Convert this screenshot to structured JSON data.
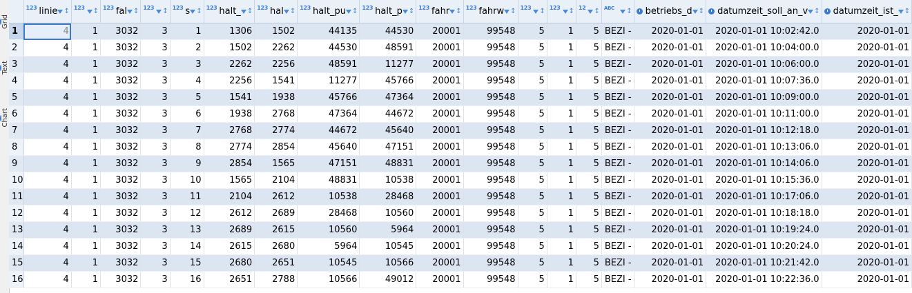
{
  "sidebar_tabs": [
    {
      "label": "Grid",
      "icon": "grid-icon"
    },
    {
      "label": "Text",
      "icon": "text-icon"
    },
    {
      "label": "Chart",
      "icon": "chart-icon"
    }
  ],
  "columns": [
    {
      "type": "123",
      "name": "linie"
    },
    {
      "type": "123",
      "name": ""
    },
    {
      "type": "123",
      "name": "fal"
    },
    {
      "type": "123",
      "name": ""
    },
    {
      "type": "123",
      "name": "s"
    },
    {
      "type": "123",
      "name": "halt_"
    },
    {
      "type": "123",
      "name": "hal"
    },
    {
      "type": "123",
      "name": "halt_pu"
    },
    {
      "type": "123",
      "name": "halt_p"
    },
    {
      "type": "123",
      "name": "fahr"
    },
    {
      "type": "123",
      "name": "fahrw"
    },
    {
      "type": "123",
      "name": ""
    },
    {
      "type": "123",
      "name": ""
    },
    {
      "type": "12",
      "name": ""
    },
    {
      "type": "ABC",
      "name": ""
    },
    {
      "type": "clock",
      "name": "betriebs_d"
    },
    {
      "type": "clock",
      "name": "datumzeit_soll_an_v"
    },
    {
      "type": "clock",
      "name": "datumzeit_ist_"
    }
  ],
  "rows": [
    [
      "1",
      "4",
      "1",
      "3032",
      "3",
      "1",
      "1306",
      "1502",
      "44135",
      "44530",
      "20001",
      "99548",
      "5",
      "1",
      "5",
      "BEZI -",
      "2020-01-01",
      "2020-01-01 10:02:42.0",
      "2020-01-01"
    ],
    [
      "2",
      "4",
      "1",
      "3032",
      "3",
      "2",
      "1502",
      "2262",
      "44530",
      "48591",
      "20001",
      "99548",
      "5",
      "1",
      "5",
      "BEZI -",
      "2020-01-01",
      "2020-01-01 10:04:00.0",
      "2020-01-01"
    ],
    [
      "3",
      "4",
      "1",
      "3032",
      "3",
      "3",
      "2262",
      "2256",
      "48591",
      "11277",
      "20001",
      "99548",
      "5",
      "1",
      "5",
      "BEZI -",
      "2020-01-01",
      "2020-01-01 10:06:00.0",
      "2020-01-01"
    ],
    [
      "4",
      "4",
      "1",
      "3032",
      "3",
      "4",
      "2256",
      "1541",
      "11277",
      "45766",
      "20001",
      "99548",
      "5",
      "1",
      "5",
      "BEZI -",
      "2020-01-01",
      "2020-01-01 10:07:36.0",
      "2020-01-01"
    ],
    [
      "5",
      "4",
      "1",
      "3032",
      "3",
      "5",
      "1541",
      "1938",
      "45766",
      "47364",
      "20001",
      "99548",
      "5",
      "1",
      "5",
      "BEZI -",
      "2020-01-01",
      "2020-01-01 10:09:00.0",
      "2020-01-01"
    ],
    [
      "6",
      "4",
      "1",
      "3032",
      "3",
      "6",
      "1938",
      "2768",
      "47364",
      "44672",
      "20001",
      "99548",
      "5",
      "1",
      "5",
      "BEZI -",
      "2020-01-01",
      "2020-01-01 10:11:00.0",
      "2020-01-01"
    ],
    [
      "7",
      "4",
      "1",
      "3032",
      "3",
      "7",
      "2768",
      "2774",
      "44672",
      "45640",
      "20001",
      "99548",
      "5",
      "1",
      "5",
      "BEZI -",
      "2020-01-01",
      "2020-01-01 10:12:18.0",
      "2020-01-01"
    ],
    [
      "8",
      "4",
      "1",
      "3032",
      "3",
      "8",
      "2774",
      "2854",
      "45640",
      "47151",
      "20001",
      "99548",
      "5",
      "1",
      "5",
      "BEZI -",
      "2020-01-01",
      "2020-01-01 10:13:06.0",
      "2020-01-01"
    ],
    [
      "9",
      "4",
      "1",
      "3032",
      "3",
      "9",
      "2854",
      "1565",
      "47151",
      "48831",
      "20001",
      "99548",
      "5",
      "1",
      "5",
      "BEZI -",
      "2020-01-01",
      "2020-01-01 10:14:06.0",
      "2020-01-01"
    ],
    [
      "10",
      "4",
      "1",
      "3032",
      "3",
      "10",
      "1565",
      "2104",
      "48831",
      "10538",
      "20001",
      "99548",
      "5",
      "1",
      "5",
      "BEZI -",
      "2020-01-01",
      "2020-01-01 10:15:36.0",
      "2020-01-01"
    ],
    [
      "11",
      "4",
      "1",
      "3032",
      "3",
      "11",
      "2104",
      "2612",
      "10538",
      "28468",
      "20001",
      "99548",
      "5",
      "1",
      "5",
      "BEZI -",
      "2020-01-01",
      "2020-01-01 10:17:06.0",
      "2020-01-01"
    ],
    [
      "12",
      "4",
      "1",
      "3032",
      "3",
      "12",
      "2612",
      "2689",
      "28468",
      "10560",
      "20001",
      "99548",
      "5",
      "1",
      "5",
      "BEZI -",
      "2020-01-01",
      "2020-01-01 10:18:18.0",
      "2020-01-01"
    ],
    [
      "13",
      "4",
      "1",
      "3032",
      "3",
      "13",
      "2689",
      "2615",
      "10560",
      "5964",
      "20001",
      "99548",
      "5",
      "1",
      "5",
      "BEZI -",
      "2020-01-01",
      "2020-01-01 10:19:24.0",
      "2020-01-01"
    ],
    [
      "14",
      "4",
      "1",
      "3032",
      "3",
      "14",
      "2615",
      "2680",
      "5964",
      "10545",
      "20001",
      "99548",
      "5",
      "1",
      "5",
      "BEZI -",
      "2020-01-01",
      "2020-01-01 10:20:24.0",
      "2020-01-01"
    ],
    [
      "15",
      "4",
      "1",
      "3032",
      "3",
      "15",
      "2680",
      "2651",
      "10545",
      "10566",
      "20001",
      "99548",
      "5",
      "1",
      "5",
      "BEZI -",
      "2020-01-01",
      "2020-01-01 10:21:42.0",
      "2020-01-01"
    ],
    [
      "16",
      "4",
      "1",
      "3032",
      "3",
      "16",
      "2651",
      "2788",
      "10566",
      "49012",
      "20001",
      "99548",
      "5",
      "1",
      "5",
      "BEZI -",
      "2020-01-01",
      "2020-01-01 10:22:36.0",
      "2020-01-01"
    ]
  ],
  "colors": {
    "accent": "#3a7bd5",
    "alt_row": "#dce6f2",
    "header": "#e9f0f8"
  }
}
